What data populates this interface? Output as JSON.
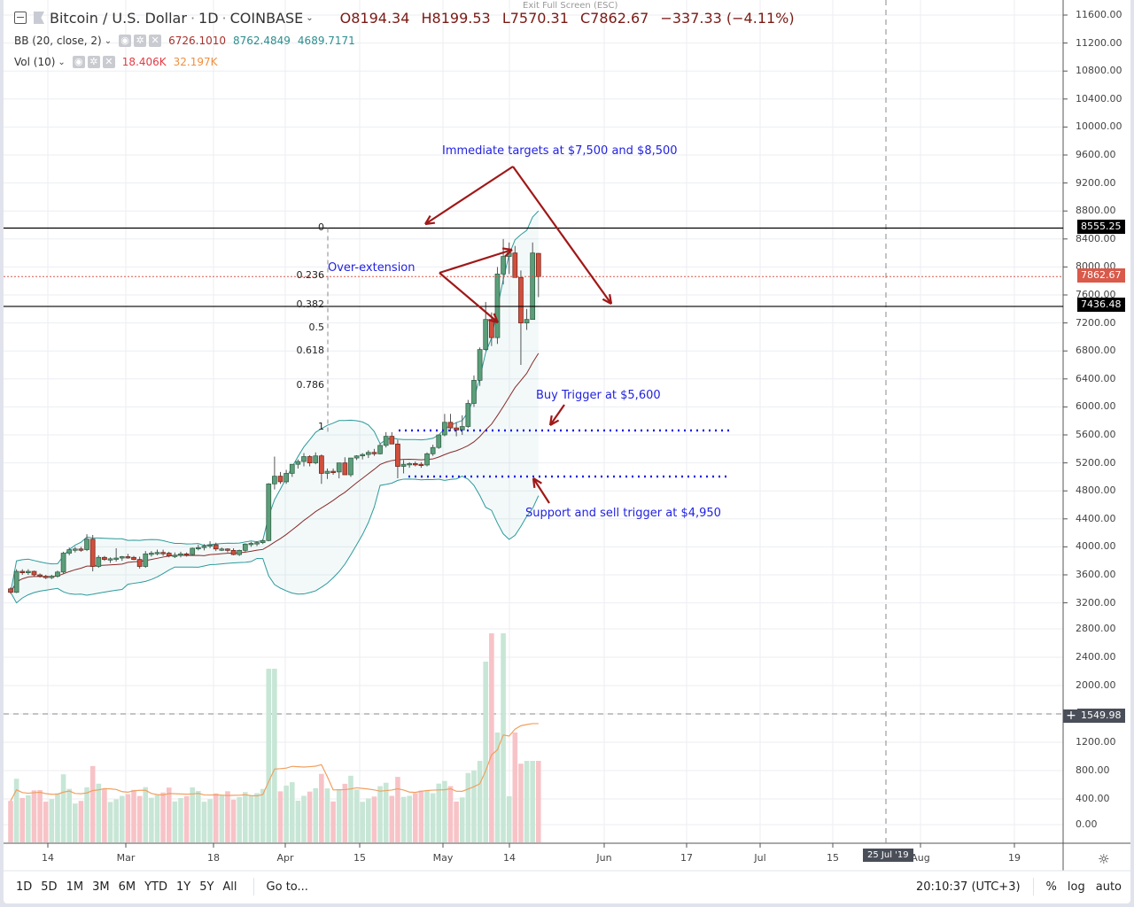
{
  "header": {
    "symbol": "Bitcoin / U.S. Dollar",
    "interval": "1D",
    "exchange": "COINBASE",
    "open": "O8194.34",
    "high": "H8199.53",
    "low": "L7570.31",
    "close": "C7862.67",
    "change": "−337.33 (−4.11%)",
    "exit_fullscreen": "Exit Full Screen (ESC)"
  },
  "indicators": [
    {
      "label": "BB (20, close, 2)",
      "values": [
        "6726.1010",
        "8762.4849",
        "4689.7171"
      ]
    },
    {
      "label": "Vol (10)",
      "values": [
        "18.406K",
        "32.197K"
      ]
    }
  ],
  "annotations": {
    "targets": "Immediate targets at $7,500 and $8,500",
    "overext": "Over-extension",
    "buy": "Buy Trigger at $5,600",
    "support": "Support and sell trigger at $4,950"
  },
  "fib_levels": [
    "0",
    "0.236",
    "0.382",
    "0.5",
    "0.618",
    "0.786",
    "1"
  ],
  "price_axis": [
    "11600.00",
    "11200.00",
    "10800.00",
    "10400.00",
    "10000.00",
    "9600.00",
    "9200.00",
    "8800.00",
    "8400.00",
    "8000.00",
    "7600.00",
    "7200.00",
    "6800.00",
    "6400.00",
    "6000.00",
    "5600.00",
    "5200.00",
    "4800.00",
    "4400.00",
    "4000.00",
    "3600.00",
    "3200.00"
  ],
  "volume_axis": [
    "2800.00",
    "2400.00",
    "2000.00",
    "1200.00",
    "800.00",
    "400.00",
    "0.00"
  ],
  "price_tags": {
    "upper_line": "8555.25",
    "last": "7862.67",
    "lower_line": "7436.48",
    "crosshair": "1549.98"
  },
  "time_axis": [
    "14",
    "Mar",
    "18",
    "Apr",
    "15",
    "May",
    "14",
    "Jun",
    "17",
    "Jul",
    "15",
    "Aug",
    "19"
  ],
  "time_tag": "25 Jul '19",
  "bottom_bar": {
    "ranges": [
      "1D",
      "5D",
      "1M",
      "3M",
      "6M",
      "YTD",
      "1Y",
      "5Y",
      "All"
    ],
    "goto": "Go to...",
    "clock": "20:10:37 (UTC+3)",
    "percent": "%",
    "log": "log",
    "auto": "auto"
  },
  "colors": {
    "up": "#5b9e7a",
    "down": "#d04f3d",
    "bb": "#2c9a9b",
    "basis": "#8a2b2b",
    "arrow": "#a01818",
    "ann": "#2222e0",
    "vol_up": "#c7e6d6",
    "vol_down": "#f7c3c7",
    "vol_ma": "#f0a060"
  },
  "chart_data": {
    "type": "candlestick",
    "title": "Bitcoin / U.S. Dollar · 1D · COINBASE",
    "ylim": [
      3200,
      11800
    ],
    "y_ticks": [
      3200,
      3600,
      4000,
      4400,
      4800,
      5200,
      5600,
      6000,
      6400,
      6800,
      7200,
      7600,
      8000,
      8400,
      8800,
      9200,
      9600,
      10000,
      10400,
      10800,
      11200,
      11600
    ],
    "x_ticks": [
      "14",
      "Mar",
      "18",
      "Apr",
      "15",
      "May",
      "14",
      "Jun",
      "17",
      "Jul",
      "15",
      "Aug",
      "19"
    ],
    "horizontal_lines": [
      8555.25,
      7436.48
    ],
    "trigger_lines": {
      "buy": 5600,
      "support": 4950
    },
    "last_close": 7862.67,
    "candles_approx": [
      [
        3400,
        3420,
        3330,
        3350
      ],
      [
        3350,
        3680,
        3340,
        3650
      ],
      [
        3650,
        3680,
        3600,
        3630
      ],
      [
        3630,
        3680,
        3600,
        3650
      ],
      [
        3650,
        3660,
        3580,
        3600
      ],
      [
        3600,
        3620,
        3560,
        3580
      ],
      [
        3580,
        3600,
        3540,
        3560
      ],
      [
        3560,
        3600,
        3540,
        3580
      ],
      [
        3580,
        3660,
        3560,
        3640
      ],
      [
        3640,
        3930,
        3620,
        3910
      ],
      [
        3910,
        3990,
        3880,
        3960
      ],
      [
        3960,
        4000,
        3920,
        3970
      ],
      [
        3970,
        4000,
        3930,
        3960
      ],
      [
        3960,
        4180,
        3940,
        4110
      ],
      [
        4110,
        4170,
        3650,
        3720
      ],
      [
        3720,
        3880,
        3700,
        3850
      ],
      [
        3850,
        3870,
        3800,
        3820
      ],
      [
        3820,
        3850,
        3770,
        3830
      ],
      [
        3830,
        3980,
        3790,
        3840
      ],
      [
        3840,
        3870,
        3800,
        3860
      ],
      [
        3860,
        3900,
        3830,
        3850
      ],
      [
        3850,
        3870,
        3810,
        3820
      ],
      [
        3820,
        3860,
        3690,
        3720
      ],
      [
        3720,
        3940,
        3700,
        3900
      ],
      [
        3900,
        3940,
        3860,
        3910
      ],
      [
        3910,
        3960,
        3880,
        3920
      ],
      [
        3920,
        3960,
        3870,
        3910
      ],
      [
        3910,
        3930,
        3850,
        3870
      ],
      [
        3870,
        3920,
        3840,
        3880
      ],
      [
        3880,
        3930,
        3850,
        3900
      ],
      [
        3900,
        3920,
        3860,
        3890
      ],
      [
        3890,
        3990,
        3870,
        3980
      ],
      [
        3980,
        4030,
        3950,
        3990
      ],
      [
        3990,
        4040,
        3950,
        4010
      ],
      [
        4010,
        4080,
        3980,
        4030
      ],
      [
        4030,
        4060,
        3940,
        3970
      ],
      [
        3970,
        3990,
        3940,
        3970
      ],
      [
        3970,
        3980,
        3920,
        3950
      ],
      [
        3950,
        3980,
        3880,
        3890
      ],
      [
        3890,
        3960,
        3870,
        3950
      ],
      [
        3950,
        4050,
        3930,
        4040
      ],
      [
        4040,
        4070,
        4000,
        4050
      ],
      [
        4050,
        4080,
        4010,
        4060
      ],
      [
        4060,
        4110,
        4040,
        4090
      ],
      [
        4090,
        4910,
        4080,
        4900
      ],
      [
        4900,
        5290,
        4820,
        5010
      ],
      [
        5010,
        5070,
        4900,
        4930
      ],
      [
        4930,
        5100,
        4900,
        5050
      ],
      [
        5050,
        5180,
        5000,
        5180
      ],
      [
        5180,
        5250,
        5120,
        5220
      ],
      [
        5220,
        5340,
        5150,
        5290
      ],
      [
        5290,
        5310,
        5150,
        5200
      ],
      [
        5200,
        5350,
        5180,
        5300
      ],
      [
        5300,
        5320,
        4900,
        5050
      ],
      [
        5050,
        5120,
        4970,
        5080
      ],
      [
        5080,
        5120,
        5030,
        5070
      ],
      [
        5070,
        5200,
        4980,
        5200
      ],
      [
        5200,
        5280,
        5100,
        5030
      ],
      [
        5030,
        5270,
        5000,
        5270
      ],
      [
        5270,
        5310,
        5240,
        5300
      ],
      [
        5300,
        5340,
        5250,
        5320
      ],
      [
        5320,
        5380,
        5270,
        5350
      ],
      [
        5350,
        5400,
        5300,
        5330
      ],
      [
        5330,
        5480,
        5320,
        5450
      ],
      [
        5450,
        5640,
        5420,
        5580
      ],
      [
        5580,
        5640,
        5480,
        5470
      ],
      [
        5470,
        5530,
        4980,
        5150
      ],
      [
        5150,
        5240,
        5050,
        5180
      ],
      [
        5180,
        5210,
        5130,
        5190
      ],
      [
        5190,
        5220,
        5150,
        5180
      ],
      [
        5180,
        5210,
        5130,
        5170
      ],
      [
        5170,
        5350,
        5150,
        5330
      ],
      [
        5330,
        5460,
        5300,
        5420
      ],
      [
        5420,
        5600,
        5400,
        5600
      ],
      [
        5600,
        5900,
        5580,
        5780
      ],
      [
        5780,
        5900,
        5650,
        5700
      ],
      [
        5700,
        5780,
        5580,
        5670
      ],
      [
        5670,
        5880,
        5600,
        5720
      ],
      [
        5720,
        6100,
        5700,
        6050
      ],
      [
        6050,
        6450,
        6000,
        6380
      ],
      [
        6380,
        6850,
        6300,
        6820
      ],
      [
        6820,
        7500,
        6800,
        7250
      ],
      [
        7250,
        7350,
        6870,
        6990
      ],
      [
        6990,
        8000,
        6900,
        7900
      ],
      [
        7900,
        8400,
        7750,
        8150
      ],
      [
        8150,
        8350,
        7900,
        8200
      ],
      [
        8200,
        8300,
        7850,
        7850
      ],
      [
        7850,
        7950,
        6600,
        7200
      ],
      [
        7200,
        7400,
        7100,
        7250
      ],
      [
        7250,
        8350,
        7250,
        8200
      ],
      [
        8194,
        8200,
        7570,
        7862
      ]
    ],
    "bollinger": {
      "basis": 6726.101,
      "upper": 8762.4849,
      "lower": 4689.7171
    },
    "volume": {
      "ylim": [
        0,
        2900
      ],
      "y_ticks": [
        0,
        400,
        800,
        1200,
        1600,
        2000,
        2400,
        2800
      ],
      "last": "18.406K",
      "ma": "32.197K",
      "crosshair_value": 1549.98
    }
  }
}
